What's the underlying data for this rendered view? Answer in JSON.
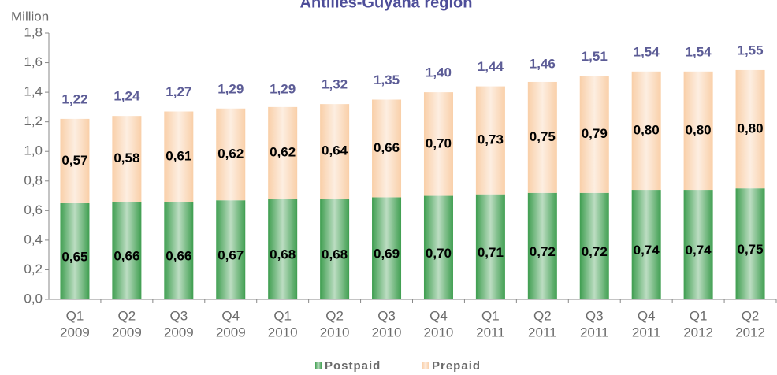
{
  "chart_data": {
    "type": "stacked_bar",
    "title": "Antilles-Guyana region",
    "y_label": "Million",
    "categories": [
      [
        "Q1",
        "2009"
      ],
      [
        "Q2",
        "2009"
      ],
      [
        "Q3",
        "2009"
      ],
      [
        "Q4",
        "2009"
      ],
      [
        "Q1",
        "2010"
      ],
      [
        "Q2",
        "2010"
      ],
      [
        "Q3",
        "2010"
      ],
      [
        "Q4",
        "2010"
      ],
      [
        "Q1",
        "2011"
      ],
      [
        "Q2",
        "2011"
      ],
      [
        "Q3",
        "2011"
      ],
      [
        "Q4",
        "2011"
      ],
      [
        "Q1",
        "2012"
      ],
      [
        "Q2",
        "2012"
      ]
    ],
    "series": [
      {
        "name": "Postpaid",
        "color": "#3f9e50",
        "values": [
          0.65,
          0.66,
          0.66,
          0.67,
          0.68,
          0.68,
          0.69,
          0.7,
          0.71,
          0.72,
          0.72,
          0.74,
          0.74,
          0.75
        ],
        "value_labels": [
          "0,65",
          "0,66",
          "0,66",
          "0,67",
          "0,68",
          "0,68",
          "0,69",
          "0,70",
          "0,71",
          "0,72",
          "0,72",
          "0,74",
          "0,74",
          "0,75"
        ]
      },
      {
        "name": "Prepaid",
        "color": "#f9cfa8",
        "values": [
          0.57,
          0.58,
          0.61,
          0.62,
          0.62,
          0.64,
          0.66,
          0.7,
          0.73,
          0.75,
          0.79,
          0.8,
          0.8,
          0.8
        ],
        "value_labels": [
          "0,57",
          "0,58",
          "0,61",
          "0,62",
          "0,62",
          "0,64",
          "0,66",
          "0,70",
          "0,73",
          "0,75",
          "0,79",
          "0,80",
          "0,80",
          "0,80"
        ]
      }
    ],
    "totals": [
      1.22,
      1.24,
      1.27,
      1.29,
      1.29,
      1.32,
      1.35,
      1.4,
      1.44,
      1.46,
      1.51,
      1.54,
      1.54,
      1.55
    ],
    "total_labels": [
      "1,22",
      "1,24",
      "1,27",
      "1,29",
      "1,29",
      "1,32",
      "1,35",
      "1,40",
      "1,44",
      "1,46",
      "1,51",
      "1,54",
      "1,54",
      "1,55"
    ],
    "ylim": [
      0,
      1.8
    ],
    "yticks": [
      {
        "value": 0,
        "label": "0,0"
      },
      {
        "value": 0.2,
        "label": "0,2"
      },
      {
        "value": 0.4,
        "label": "0,4"
      },
      {
        "value": 0.6,
        "label": "0,6"
      },
      {
        "value": 0.8,
        "label": "0,8"
      },
      {
        "value": 1.0,
        "label": "1,0"
      },
      {
        "value": 1.2,
        "label": "1,2"
      },
      {
        "value": 1.4,
        "label": "1,4"
      },
      {
        "value": 1.6,
        "label": "1,6"
      },
      {
        "value": 1.8,
        "label": "1,8"
      }
    ],
    "legend": "bottom"
  }
}
